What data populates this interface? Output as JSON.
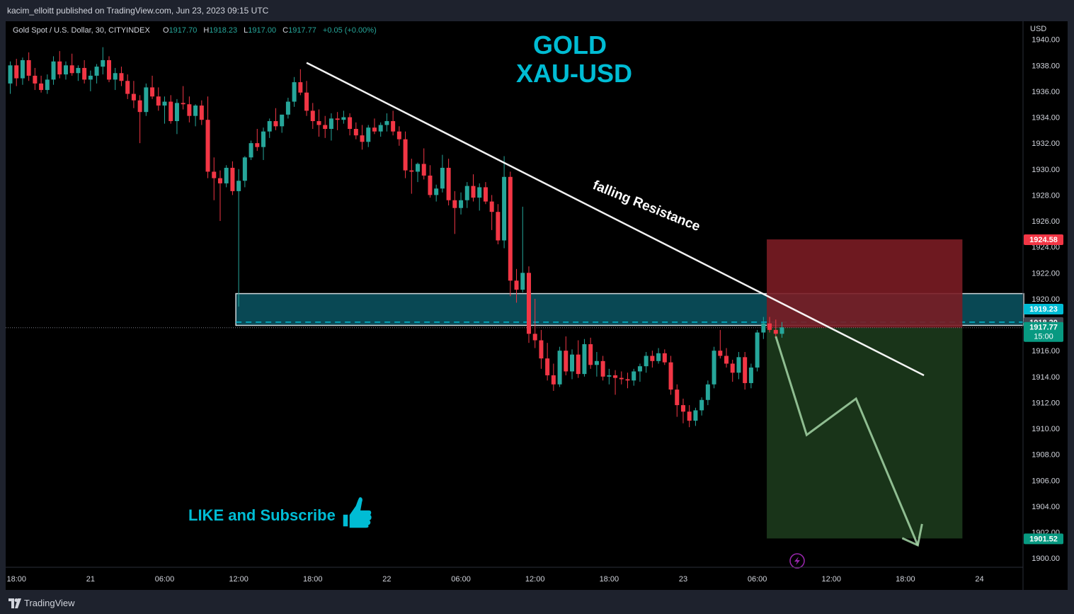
{
  "header": {
    "published_by": "kacim_elloitt published on TradingView.com, Jun 23, 2023 09:15 UTC"
  },
  "legend": {
    "symbol": "Gold Spot / U.S. Dollar, 30, CITYINDEX",
    "o_label": "O",
    "o_value": "1917.70",
    "h_label": "H",
    "h_value": "1918.23",
    "l_label": "L",
    "l_value": "1917.00",
    "c_label": "C",
    "c_value": "1917.77",
    "change": "+0.05 (+0.00%)"
  },
  "price_scale": {
    "currency": "USD",
    "ticks": [
      "1940.00",
      "1938.00",
      "1936.00",
      "1934.00",
      "1932.00",
      "1930.00",
      "1928.00",
      "1926.00",
      "1924.00",
      "1922.00",
      "1920.00",
      "1918.00",
      "1916.00",
      "1914.00",
      "1912.00",
      "1910.00",
      "1908.00",
      "1906.00",
      "1904.00",
      "1902.00",
      "1900.00"
    ],
    "badges": [
      {
        "label": "1924.58",
        "price": 1924.58,
        "color": "#f23645"
      },
      {
        "label": "1919.23",
        "price": 1919.23,
        "color": "#00bcd4"
      },
      {
        "label": "1918.20",
        "price": 1918.2,
        "color": "#434651"
      },
      {
        "label": "1917.77",
        "sub": "15:00",
        "price": 1917.77,
        "color": "#089981"
      },
      {
        "label": "1901.52",
        "price": 1901.52,
        "color": "#089981"
      }
    ]
  },
  "time_scale": {
    "ticks": [
      "18:00",
      "21",
      "06:00",
      "12:00",
      "18:00",
      "22",
      "06:00",
      "12:00",
      "18:00",
      "23",
      "06:00",
      "12:00",
      "18:00",
      "24"
    ]
  },
  "annotations": {
    "title_line1": "GOLD",
    "title_line2": "XAU-USD",
    "trendline_label": "falling Resistance",
    "cta": "LIKE and Subscribe"
  },
  "colors": {
    "up": "#26a69a",
    "down": "#f23645",
    "title": "#00bcd4",
    "zone_fill": "#0b5563",
    "stop_fill": "#7a1c24",
    "target_fill": "#1c3a1c",
    "projection": "#a5d6a7"
  },
  "icons": {
    "thumbs_up": "thumbs-up-icon",
    "flash": "lightning-icon",
    "brand": "tradingview-logo"
  },
  "footer": {
    "brand": "TradingView"
  },
  "chart_data": {
    "type": "candlestick",
    "title": "Gold Spot / U.S. Dollar, 30, CITYINDEX",
    "interval": "30m",
    "ylim": [
      1899.3,
      1941.4
    ],
    "x_range": [
      "2023-06-20 16:00",
      "2023-06-24 01:00"
    ],
    "series": [
      {
        "name": "XAU-USD",
        "values": [
          [
            1936.6,
            1938.3,
            1935.8,
            1938.0
          ],
          [
            1938.0,
            1938.5,
            1936.4,
            1937.0
          ],
          [
            1937.0,
            1938.6,
            1936.5,
            1938.4
          ],
          [
            1938.4,
            1939.0,
            1936.8,
            1937.2
          ],
          [
            1937.2,
            1937.8,
            1936.1,
            1936.6
          ],
          [
            1936.6,
            1937.2,
            1935.9,
            1936.1
          ],
          [
            1936.1,
            1937.3,
            1935.8,
            1936.9
          ],
          [
            1936.9,
            1938.7,
            1936.5,
            1938.3
          ],
          [
            1938.3,
            1939.1,
            1937.0,
            1937.3
          ],
          [
            1937.3,
            1938.3,
            1936.9,
            1938.0
          ],
          [
            1938.0,
            1938.9,
            1937.2,
            1937.4
          ],
          [
            1937.4,
            1938.0,
            1936.8,
            1937.8
          ],
          [
            1937.8,
            1938.4,
            1936.6,
            1936.9
          ],
          [
            1936.9,
            1937.6,
            1936.0,
            1937.2
          ],
          [
            1937.2,
            1938.1,
            1936.6,
            1937.9
          ],
          [
            1937.9,
            1939.4,
            1937.3,
            1938.4
          ],
          [
            1938.4,
            1938.7,
            1936.7,
            1936.9
          ],
          [
            1936.9,
            1937.8,
            1936.1,
            1937.4
          ],
          [
            1937.4,
            1937.9,
            1936.4,
            1936.8
          ],
          [
            1936.8,
            1937.3,
            1935.4,
            1935.8
          ],
          [
            1935.8,
            1936.8,
            1934.7,
            1935.3
          ],
          [
            1935.3,
            1935.7,
            1932.0,
            1934.4
          ],
          [
            1934.4,
            1936.6,
            1934.1,
            1936.3
          ],
          [
            1936.3,
            1937.2,
            1935.4,
            1935.6
          ],
          [
            1935.6,
            1936.3,
            1934.5,
            1934.9
          ],
          [
            1934.9,
            1935.6,
            1933.5,
            1935.2
          ],
          [
            1935.2,
            1935.7,
            1933.5,
            1933.7
          ],
          [
            1933.7,
            1935.4,
            1932.7,
            1935.1
          ],
          [
            1935.1,
            1936.4,
            1934.6,
            1935.0
          ],
          [
            1935.0,
            1935.6,
            1933.6,
            1934.1
          ],
          [
            1934.1,
            1935.0,
            1933.3,
            1934.9
          ],
          [
            1934.9,
            1935.3,
            1933.4,
            1933.8
          ],
          [
            1933.8,
            1935.6,
            1929.3,
            1929.8
          ],
          [
            1929.8,
            1930.9,
            1927.6,
            1929.3
          ],
          [
            1929.3,
            1929.9,
            1926.0,
            1928.9
          ],
          [
            1928.9,
            1930.3,
            1928.6,
            1930.1
          ],
          [
            1930.1,
            1930.6,
            1928.0,
            1928.3
          ],
          [
            1928.3,
            1930.0,
            1919.4,
            1929.1
          ],
          [
            1929.1,
            1931.0,
            1928.6,
            1930.9
          ],
          [
            1930.9,
            1932.2,
            1930.7,
            1932.0
          ],
          [
            1932.0,
            1933.1,
            1931.4,
            1931.7
          ],
          [
            1931.7,
            1933.2,
            1930.7,
            1932.9
          ],
          [
            1932.9,
            1933.9,
            1932.4,
            1933.7
          ],
          [
            1933.7,
            1934.7,
            1933.0,
            1933.3
          ],
          [
            1933.3,
            1934.1,
            1932.8,
            1934.2
          ],
          [
            1934.2,
            1935.5,
            1933.9,
            1935.2
          ],
          [
            1935.2,
            1937.1,
            1934.8,
            1936.7
          ],
          [
            1936.7,
            1937.7,
            1935.7,
            1935.9
          ],
          [
            1935.9,
            1936.8,
            1934.1,
            1934.5
          ],
          [
            1934.5,
            1935.1,
            1933.1,
            1933.7
          ],
          [
            1933.7,
            1934.6,
            1932.5,
            1933.4
          ],
          [
            1933.4,
            1934.1,
            1932.4,
            1933.1
          ],
          [
            1933.1,
            1934.3,
            1932.2,
            1933.9
          ],
          [
            1933.9,
            1934.4,
            1933.0,
            1933.8
          ],
          [
            1933.8,
            1934.5,
            1933.5,
            1934.0
          ],
          [
            1934.0,
            1934.3,
            1932.6,
            1933.1
          ],
          [
            1933.1,
            1933.6,
            1932.3,
            1932.6
          ],
          [
            1932.6,
            1933.4,
            1931.5,
            1932.1
          ],
          [
            1932.1,
            1933.4,
            1931.7,
            1933.2
          ],
          [
            1933.2,
            1933.9,
            1932.7,
            1932.9
          ],
          [
            1932.9,
            1933.6,
            1932.5,
            1933.4
          ],
          [
            1933.4,
            1934.3,
            1932.9,
            1933.7
          ],
          [
            1933.7,
            1934.5,
            1932.6,
            1932.9
          ],
          [
            1932.9,
            1933.3,
            1931.8,
            1932.3
          ],
          [
            1932.3,
            1932.9,
            1929.3,
            1929.9
          ],
          [
            1929.9,
            1930.8,
            1928.1,
            1929.8
          ],
          [
            1929.8,
            1930.5,
            1929.0,
            1930.4
          ],
          [
            1930.4,
            1931.6,
            1929.2,
            1929.5
          ],
          [
            1929.5,
            1930.3,
            1927.8,
            1928.0
          ],
          [
            1928.0,
            1928.8,
            1927.5,
            1928.5
          ],
          [
            1928.5,
            1931.1,
            1928.2,
            1930.1
          ],
          [
            1930.1,
            1930.8,
            1927.2,
            1927.6
          ],
          [
            1927.6,
            1928.3,
            1925.0,
            1927.0
          ],
          [
            1927.0,
            1928.2,
            1926.5,
            1927.6
          ],
          [
            1927.6,
            1929.0,
            1927.0,
            1928.7
          ],
          [
            1928.7,
            1929.6,
            1927.5,
            1927.8
          ],
          [
            1927.8,
            1928.9,
            1926.8,
            1928.6
          ],
          [
            1928.6,
            1929.0,
            1927.3,
            1927.5
          ],
          [
            1927.5,
            1928.0,
            1925.3,
            1926.7
          ],
          [
            1926.7,
            1927.3,
            1924.2,
            1924.5
          ],
          [
            1924.5,
            1931.0,
            1923.9,
            1929.4
          ],
          [
            1929.4,
            1929.8,
            1920.2,
            1921.4
          ],
          [
            1921.4,
            1922.3,
            1919.7,
            1920.7
          ],
          [
            1920.7,
            1927.1,
            1920.5,
            1922.0
          ],
          [
            1922.0,
            1922.5,
            1916.6,
            1917.3
          ],
          [
            1917.3,
            1920.0,
            1916.2,
            1916.8
          ],
          [
            1916.8,
            1917.6,
            1914.6,
            1915.4
          ],
          [
            1915.4,
            1916.6,
            1913.7,
            1914.1
          ],
          [
            1914.1,
            1915.0,
            1912.9,
            1913.4
          ],
          [
            1913.4,
            1916.3,
            1913.2,
            1916.0
          ],
          [
            1916.0,
            1917.1,
            1914.1,
            1914.4
          ],
          [
            1914.4,
            1916.1,
            1913.8,
            1915.7
          ],
          [
            1915.7,
            1916.8,
            1913.9,
            1914.2
          ],
          [
            1914.2,
            1916.9,
            1914.0,
            1916.5
          ],
          [
            1916.5,
            1917.0,
            1914.6,
            1914.9
          ],
          [
            1914.9,
            1915.9,
            1914.0,
            1915.2
          ],
          [
            1915.2,
            1915.6,
            1913.7,
            1914.0
          ],
          [
            1914.0,
            1914.6,
            1913.4,
            1914.1
          ],
          [
            1914.1,
            1914.5,
            1912.6,
            1913.9
          ],
          [
            1913.9,
            1914.4,
            1913.4,
            1913.8
          ],
          [
            1913.8,
            1914.3,
            1913.1,
            1913.7
          ],
          [
            1913.7,
            1914.6,
            1913.3,
            1914.4
          ],
          [
            1914.4,
            1915.0,
            1913.6,
            1914.8
          ],
          [
            1914.8,
            1915.9,
            1914.3,
            1915.6
          ],
          [
            1915.6,
            1916.0,
            1914.7,
            1915.2
          ],
          [
            1915.2,
            1916.2,
            1915.0,
            1915.8
          ],
          [
            1915.8,
            1916.1,
            1914.9,
            1915.1
          ],
          [
            1915.1,
            1915.6,
            1912.6,
            1913.0
          ],
          [
            1913.0,
            1913.4,
            1910.9,
            1911.8
          ],
          [
            1911.8,
            1912.3,
            1910.4,
            1911.3
          ],
          [
            1911.3,
            1911.8,
            1910.1,
            1910.6
          ],
          [
            1910.6,
            1911.6,
            1910.2,
            1911.4
          ],
          [
            1911.4,
            1912.4,
            1911.0,
            1912.2
          ],
          [
            1912.2,
            1913.7,
            1911.8,
            1913.4
          ],
          [
            1913.4,
            1916.3,
            1913.1,
            1916.0
          ],
          [
            1916.0,
            1917.6,
            1915.4,
            1915.6
          ],
          [
            1915.6,
            1916.2,
            1914.7,
            1915.0
          ],
          [
            1915.0,
            1915.3,
            1913.6,
            1914.3
          ],
          [
            1914.3,
            1915.9,
            1913.8,
            1915.5
          ],
          [
            1915.5,
            1915.9,
            1913.0,
            1913.5
          ],
          [
            1913.5,
            1915.0,
            1913.1,
            1914.7
          ],
          [
            1914.7,
            1917.6,
            1914.4,
            1917.4
          ],
          [
            1917.4,
            1918.6,
            1916.9,
            1918.1
          ],
          [
            1918.1,
            1918.6,
            1917.4,
            1917.6
          ],
          [
            1917.6,
            1918.4,
            1917.0,
            1917.3
          ],
          [
            1917.3,
            1918.2,
            1917.0,
            1917.8
          ]
        ]
      }
    ],
    "zones": [
      {
        "name": "support-resistance-zone",
        "top": 1920.4,
        "bottom": 1917.95,
        "mid": 1918.2,
        "from_index": 37,
        "to": "right"
      },
      {
        "name": "stop-zone",
        "top": 1924.58,
        "bottom": 1917.77,
        "from_index": 123,
        "to_index": 154
      },
      {
        "name": "target-zone",
        "top": 1917.77,
        "bottom": 1901.52,
        "from_index": 123,
        "to_index": 154
      }
    ],
    "trendline": {
      "label": "falling Resistance",
      "from": [
        48,
        1938.2
      ],
      "to": [
        148,
        1914.1
      ]
    },
    "projection_path": [
      [
        124,
        1917.1
      ],
      [
        129,
        1909.5
      ],
      [
        137,
        1912.3
      ],
      [
        147,
        1901.0
      ]
    ],
    "last_price": 1917.77,
    "xlabel": "",
    "ylabel": "",
    "grid": false
  }
}
